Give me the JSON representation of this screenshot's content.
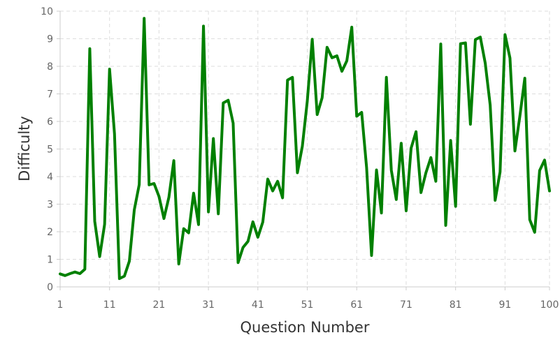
{
  "chart_data": {
    "type": "line",
    "title": "",
    "xlabel": "Question Number",
    "ylabel": "Difficulty",
    "xlim": [
      1,
      100
    ],
    "ylim": [
      0,
      10
    ],
    "x_ticks": [
      1,
      11,
      21,
      31,
      41,
      51,
      61,
      71,
      81,
      91,
      100
    ],
    "y_ticks": [
      0,
      1,
      2,
      3,
      4,
      5,
      6,
      7,
      8,
      9,
      10
    ],
    "grid": true,
    "line_color": "#008000",
    "x": [
      1,
      2,
      3,
      4,
      5,
      6,
      7,
      8,
      9,
      10,
      11,
      12,
      13,
      14,
      15,
      16,
      17,
      18,
      19,
      20,
      21,
      22,
      23,
      24,
      25,
      26,
      27,
      28,
      29,
      30,
      31,
      32,
      33,
      34,
      35,
      36,
      37,
      38,
      39,
      40,
      41,
      42,
      43,
      44,
      45,
      46,
      47,
      48,
      49,
      50,
      51,
      52,
      53,
      54,
      55,
      56,
      57,
      58,
      59,
      60,
      61,
      62,
      63,
      64,
      65,
      66,
      67,
      68,
      69,
      70,
      71,
      72,
      73,
      74,
      75,
      76,
      77,
      78,
      79,
      80,
      81,
      82,
      83,
      84,
      85,
      86,
      87,
      88,
      89,
      90,
      91,
      92,
      93,
      94,
      95,
      96,
      97,
      98,
      99,
      100
    ],
    "series": [
      {
        "values": [
          0.47,
          0.41,
          0.48,
          0.54,
          0.48,
          0.64,
          8.64,
          2.38,
          1.1,
          2.27,
          7.9,
          5.55,
          0.3,
          0.39,
          0.93,
          2.79,
          3.71,
          9.74,
          3.7,
          3.75,
          3.28,
          2.48,
          3.25,
          4.58,
          0.83,
          2.11,
          1.96,
          3.4,
          2.26,
          9.46,
          2.72,
          5.38,
          2.65,
          6.67,
          6.77,
          5.94,
          0.88,
          1.43,
          1.65,
          2.36,
          1.8,
          2.35,
          3.91,
          3.48,
          3.83,
          3.23,
          7.5,
          7.6,
          4.14,
          5.1,
          6.74,
          8.98,
          6.25,
          6.86,
          8.69,
          8.31,
          8.38,
          7.82,
          8.2,
          9.42,
          6.19,
          6.33,
          4.32,
          1.14,
          4.24,
          2.68,
          7.6,
          4.23,
          3.17,
          5.21,
          2.76,
          5.03,
          5.63,
          3.42,
          4.14,
          4.69,
          3.83,
          8.81,
          2.23,
          5.31,
          2.92,
          8.82,
          8.85,
          5.9,
          8.97,
          9.06,
          8.11,
          6.59,
          3.14,
          4.17,
          9.15,
          8.3,
          4.93,
          6.19,
          7.57,
          2.44,
          1.98,
          4.22,
          4.6,
          3.48
        ]
      }
    ]
  }
}
